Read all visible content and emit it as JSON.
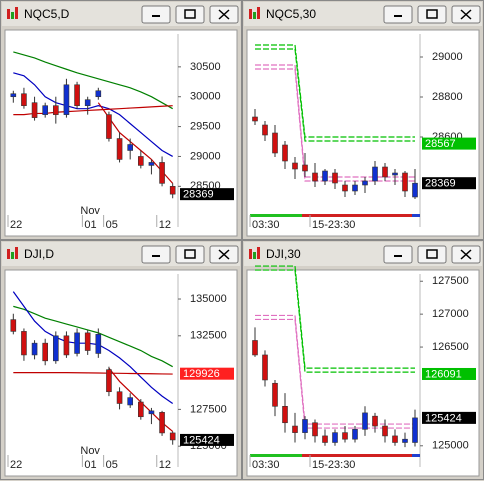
{
  "chart_data": [
    {
      "type": "candlestick",
      "title": "NQC5,D",
      "ylim": [
        28020,
        31050
      ],
      "yticks": [
        30500,
        30000,
        29500,
        29000,
        28500
      ],
      "categories": [
        "22",
        null,
        null,
        null,
        null,
        null,
        null,
        "01",
        null,
        "05",
        null,
        null,
        null,
        null,
        "12",
        null
      ],
      "month_label": "Nov",
      "up_color": "#1030d0",
      "down_color": "#d01010",
      "open": [
        30000,
        30050,
        29900,
        29700,
        29850,
        29700,
        30200,
        29850,
        30000,
        29700,
        29300,
        29100,
        29000,
        28850,
        28900,
        28500
      ],
      "high": [
        30100,
        30150,
        30000,
        29900,
        30000,
        30300,
        30250,
        30000,
        30150,
        29750,
        29400,
        29300,
        29100,
        28950,
        29000,
        28550
      ],
      "low": [
        29900,
        29800,
        29600,
        29650,
        29550,
        29650,
        29800,
        29700,
        29950,
        29250,
        28900,
        28950,
        28800,
        28700,
        28500,
        28300
      ],
      "close": [
        30050,
        29850,
        29650,
        29850,
        29700,
        30200,
        29850,
        29950,
        30100,
        29300,
        28950,
        29200,
        28850,
        28900,
        28550,
        28369
      ],
      "series": [
        {
          "color": "#008000",
          "values": [
            30750,
            30700,
            30650,
            30580,
            30520,
            30460,
            30400,
            30350,
            30300,
            30250,
            30200,
            30150,
            30080,
            30000,
            29900,
            29800
          ]
        },
        {
          "color": "#0000c0",
          "values": [
            30400,
            30350,
            30200,
            30000,
            29900,
            29850,
            29800,
            29800,
            29850,
            29800,
            29700,
            29550,
            29400,
            29250,
            29100,
            29000
          ]
        },
        {
          "color": "#c00000",
          "values": [
            29700,
            29700,
            29720,
            29720,
            29740,
            29750,
            29760,
            29770,
            29780,
            29790,
            29800,
            29810,
            29820,
            29830,
            29840,
            29850
          ]
        },
        {
          "color": "#c00000",
          "values": [
            null,
            null,
            null,
            null,
            null,
            null,
            null,
            null,
            29900,
            29650,
            29400,
            29250,
            29100,
            28950,
            28750,
            28550
          ]
        }
      ],
      "markers": [
        {
          "value": 28369,
          "color": "#000000"
        }
      ]
    },
    {
      "type": "candlestick",
      "title": "NQC5,30",
      "ylim": [
        28210,
        29115
      ],
      "yticks": [
        29000,
        28800,
        28600
      ],
      "categories": [
        "03:30",
        null,
        null,
        null,
        null,
        null,
        "15-23:30",
        null,
        null,
        null,
        null,
        null,
        null,
        null,
        null,
        null,
        null
      ],
      "up_color": "#1030d0",
      "down_color": "#d01010",
      "session_bar": true,
      "open": [
        28700,
        28660,
        28620,
        28560,
        28470,
        28460,
        28420,
        28380,
        28420,
        28360,
        28330,
        28360,
        28380,
        28450,
        28410,
        28420,
        28300
      ],
      "high": [
        28740,
        28680,
        28660,
        28580,
        28500,
        28520,
        28470,
        28440,
        28440,
        28380,
        28380,
        28400,
        28480,
        28470,
        28440,
        28430,
        28440
      ],
      "low": [
        28660,
        28580,
        28500,
        28440,
        28390,
        28400,
        28350,
        28360,
        28340,
        28300,
        28310,
        28320,
        28360,
        28380,
        28360,
        28300,
        28290
      ],
      "close": [
        28680,
        28610,
        28520,
        28480,
        28440,
        28430,
        28380,
        28430,
        28370,
        28330,
        28360,
        28380,
        28450,
        28400,
        28420,
        28330,
        28369
      ],
      "series": [
        {
          "color": "#00c000",
          "double": true,
          "values": [
            29050,
            29050,
            29050,
            29050,
            29050,
            28590,
            28590,
            28590,
            28590,
            28590,
            28590,
            28590,
            28590,
            28590,
            28590,
            28590,
            28590
          ]
        },
        {
          "color": "#e070c0",
          "double": true,
          "values": [
            28950,
            28950,
            28950,
            28950,
            28950,
            28390,
            28390,
            28390,
            28390,
            28390,
            28390,
            28390,
            28390,
            28390,
            28390,
            28390,
            28390
          ]
        }
      ],
      "markers": [
        {
          "value": 28567,
          "color": "#00c000"
        },
        {
          "value": 28369,
          "color": "#000000"
        }
      ]
    },
    {
      "type": "candlestick",
      "title": "DJI,D",
      "ylim": [
        124400,
        136700
      ],
      "yticks": [
        135000,
        132500,
        127500,
        125000
      ],
      "categories": [
        "22",
        null,
        null,
        null,
        null,
        null,
        null,
        "01",
        null,
        "05",
        null,
        null,
        null,
        null,
        "12",
        null
      ],
      "month_label": "Nov",
      "up_color": "#1030d0",
      "down_color": "#d01010",
      "open": [
        133600,
        132800,
        131200,
        132000,
        130800,
        132500,
        131300,
        132700,
        131300,
        130200,
        128700,
        127800,
        128000,
        127200,
        127300,
        125900
      ],
      "high": [
        134000,
        133000,
        132200,
        132300,
        132800,
        132800,
        133000,
        132900,
        133000,
        130400,
        129000,
        128600,
        128200,
        127600,
        127400,
        126000
      ],
      "low": [
        132600,
        130800,
        130900,
        130500,
        130600,
        131000,
        131100,
        131200,
        131000,
        128400,
        127500,
        127600,
        126800,
        126500,
        125700,
        125100
      ],
      "close": [
        132800,
        131200,
        132000,
        130800,
        132500,
        131200,
        132700,
        131500,
        132600,
        128700,
        127900,
        128300,
        127000,
        127400,
        125900,
        125424
      ],
      "series": [
        {
          "color": "#008000",
          "values": [
            134500,
            134300,
            134000,
            133700,
            133500,
            133300,
            133100,
            132900,
            132700,
            132400,
            132100,
            131800,
            131500,
            131100,
            130800,
            130400
          ]
        },
        {
          "color": "#0000c0",
          "values": [
            135500,
            134500,
            133500,
            132800,
            132400,
            132100,
            132000,
            132000,
            131900,
            131500,
            131000,
            130400,
            129700,
            129000,
            128400,
            127900
          ]
        },
        {
          "color": "#c00000",
          "values": [
            130000,
            130000,
            130000,
            130000,
            130000,
            130000,
            129990,
            129980,
            129970,
            129960,
            129950,
            129940,
            129930,
            129920,
            129910,
            129900
          ]
        },
        {
          "color": "#c00000",
          "values": [
            null,
            null,
            null,
            null,
            null,
            null,
            null,
            null,
            null,
            130300,
            129400,
            128700,
            128000,
            127300,
            126600,
            126000
          ]
        }
      ],
      "markers": [
        {
          "value": 129926,
          "color": "#ff2020"
        },
        {
          "value": 125424,
          "color": "#000000"
        }
      ]
    },
    {
      "type": "candlestick",
      "title": "DJI,30",
      "ylim": [
        124860,
        127610
      ],
      "yticks": [
        127500,
        127000,
        126500,
        125000
      ],
      "categories": [
        "03:30",
        null,
        null,
        null,
        null,
        null,
        "15-23:30",
        null,
        null,
        null,
        null,
        null,
        null,
        null,
        null,
        null,
        null
      ],
      "up_color": "#1030d0",
      "down_color": "#d01010",
      "session_bar": true,
      "open": [
        126600,
        126380,
        125950,
        125600,
        125300,
        125200,
        125350,
        125150,
        125050,
        125200,
        125100,
        125250,
        125450,
        125300,
        125150,
        125050,
        125050
      ],
      "high": [
        126800,
        126450,
        126000,
        125800,
        125500,
        125450,
        125400,
        125250,
        125250,
        125300,
        125300,
        125600,
        125500,
        125400,
        125250,
        125200,
        125550
      ],
      "low": [
        126350,
        125900,
        125450,
        125200,
        125050,
        125100,
        125050,
        125000,
        125000,
        125050,
        125050,
        125150,
        125200,
        125050,
        125000,
        124980,
        124990
      ],
      "close": [
        126380,
        126000,
        125600,
        125350,
        125200,
        125400,
        125150,
        125050,
        125200,
        125100,
        125250,
        125500,
        125300,
        125150,
        125050,
        125100,
        125424
      ],
      "series": [
        {
          "color": "#00c000",
          "double": true,
          "values": [
            127700,
            127700,
            127700,
            127700,
            127700,
            126150,
            126150,
            126150,
            126150,
            126150,
            126150,
            126150,
            126150,
            126150,
            126150,
            126150,
            126150
          ]
        },
        {
          "color": "#e070c0",
          "double": true,
          "values": [
            126950,
            126950,
            126950,
            126950,
            126950,
            125300,
            125300,
            125300,
            125300,
            125300,
            125300,
            125300,
            125300,
            125300,
            125300,
            125300,
            125300
          ]
        }
      ],
      "markers": [
        {
          "value": 126091,
          "color": "#00c000"
        },
        {
          "value": 125424,
          "color": "#000000"
        }
      ]
    }
  ]
}
